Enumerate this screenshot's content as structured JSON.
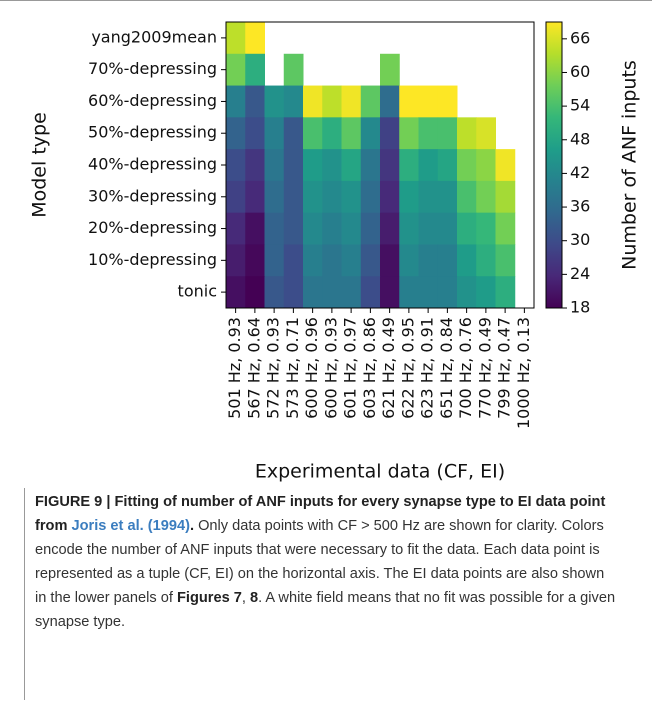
{
  "chart_data": {
    "type": "heatmap",
    "x_label": "Experimental data (CF, EI)",
    "y_label": "Model type",
    "colorbar_label": "Number of ANF inputs",
    "colormap": "viridis",
    "categories": [
      "501 Hz, 0.93",
      "567 Hz, 0.64",
      "572 Hz, 0.93",
      "573 Hz, 0.71",
      "600 Hz, 0.96",
      "600 Hz, 0.93",
      "601 Hz, 0.97",
      "603 Hz, 0.86",
      "621 Hz, 0.49",
      "622 Hz, 0.95",
      "623 Hz, 0.91",
      "651 Hz, 0.84",
      "700 Hz, 0.76",
      "770 Hz, 0.49",
      "799 Hz, 0.47",
      "1000 Hz, 0.13"
    ],
    "rows": [
      "yang2009mean",
      "70%-depressing",
      "60%-depressing",
      "50%-depressing",
      "40%-depressing",
      "30%-depressing",
      "20%-depressing",
      "10%-depressing",
      "tonic"
    ],
    "values": [
      [
        64,
        69,
        null,
        null,
        null,
        null,
        null,
        null,
        null,
        null,
        null,
        null,
        null,
        null,
        null,
        null
      ],
      [
        58,
        50,
        null,
        56,
        null,
        null,
        null,
        null,
        58,
        null,
        null,
        null,
        null,
        null,
        null,
        null
      ],
      [
        40,
        32,
        44,
        42,
        68,
        64,
        68,
        56,
        36,
        70,
        70,
        70,
        null,
        null,
        null,
        null
      ],
      [
        34,
        30,
        40,
        32,
        54,
        50,
        56,
        42,
        28,
        58,
        54,
        54,
        64,
        66,
        null,
        null
      ],
      [
        30,
        26,
        38,
        32,
        46,
        44,
        48,
        38,
        26,
        50,
        46,
        48,
        58,
        60,
        68,
        null
      ],
      [
        28,
        24,
        36,
        32,
        44,
        42,
        44,
        36,
        24,
        46,
        44,
        44,
        54,
        58,
        62,
        null
      ],
      [
        24,
        20,
        34,
        32,
        42,
        40,
        42,
        34,
        22,
        44,
        42,
        42,
        50,
        52,
        58,
        null
      ],
      [
        22,
        19,
        34,
        30,
        40,
        38,
        40,
        32,
        20,
        42,
        40,
        40,
        46,
        50,
        54,
        null
      ],
      [
        20,
        18,
        32,
        30,
        38,
        38,
        38,
        30,
        20,
        40,
        40,
        40,
        44,
        46,
        50,
        null
      ]
    ],
    "zlim": [
      18,
      69
    ],
    "zticks": [
      18,
      24,
      30,
      36,
      42,
      48,
      54,
      60,
      66
    ]
  },
  "caption": {
    "lead": "FIGURE 9 | Fitting of number of ANF inputs for every synapse type to EI data point from",
    "ref": "Joris et al. (1994)",
    "lead_end": ".",
    "text": "Only data points with CF > 500 Hz are shown for clarity. Colors encode the number of ANF inputs that were necessary to fit the data. Each data point is represented as a tuple (CF, EI) on the horizontal axis. The EI data points are also shown in the lower panels of",
    "fig_a": "Figures 7",
    "sep": ",",
    "fig_b": "8",
    "text_end": ". A white field means that no fit was possible for a given synapse type."
  }
}
